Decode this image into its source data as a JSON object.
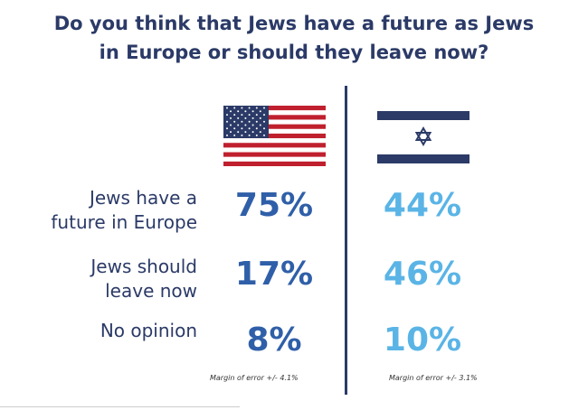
{
  "chart_data": {
    "type": "table",
    "title": "Do you think that Jews have a future as Jews in Europe or should they leave now?",
    "title_lines": [
      "Do you think that Jews have a future as Jews",
      "in Europe or should they leave now?"
    ],
    "categories": [
      "Jews have a future in Europe",
      "Jews should leave now",
      "No opinion"
    ],
    "category_lines": [
      [
        "Jews have a",
        "future in Europe"
      ],
      [
        "Jews should",
        "leave now"
      ],
      [
        "No opinion"
      ]
    ],
    "series": [
      {
        "name": "United States",
        "icon": "us-flag-icon",
        "values": [
          75,
          17,
          8
        ],
        "labels": [
          "75%",
          "17%",
          "8%"
        ],
        "color": "#2f5fa8",
        "margin_of_error": "Margin of error +/- 4.1%"
      },
      {
        "name": "Israel",
        "icon": "israel-flag-icon",
        "values": [
          44,
          46,
          10
        ],
        "labels": [
          "44%",
          "46%",
          "10%"
        ],
        "color": "#5ab4e6",
        "margin_of_error": "Margin of error +/- 3.1%"
      }
    ],
    "unit": "%"
  },
  "colors": {
    "title": "#2b3a67",
    "divider": "#2b3a67"
  }
}
